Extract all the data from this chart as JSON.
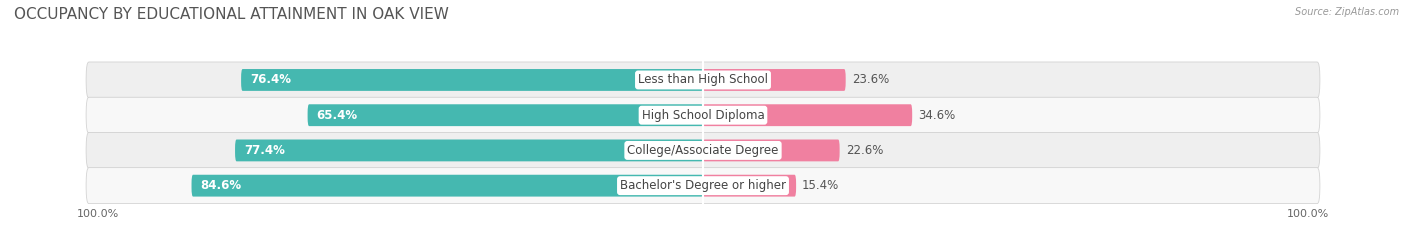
{
  "title": "OCCUPANCY BY EDUCATIONAL ATTAINMENT IN OAK VIEW",
  "source": "Source: ZipAtlas.com",
  "categories": [
    "Less than High School",
    "High School Diploma",
    "College/Associate Degree",
    "Bachelor's Degree or higher"
  ],
  "owner_values": [
    76.4,
    65.4,
    77.4,
    84.6
  ],
  "renter_values": [
    23.6,
    34.6,
    22.6,
    15.4
  ],
  "owner_color": "#45b8b0",
  "renter_color": "#f080a0",
  "row_bg_color_odd": "#efefef",
  "row_bg_color_even": "#f8f8f8",
  "axis_label_left": "100.0%",
  "axis_label_right": "100.0%",
  "title_fontsize": 11,
  "label_fontsize": 8.5,
  "value_fontsize": 8.5,
  "tick_fontsize": 8,
  "fig_bg_color": "#ffffff",
  "bar_height": 0.62,
  "xlim": 100
}
